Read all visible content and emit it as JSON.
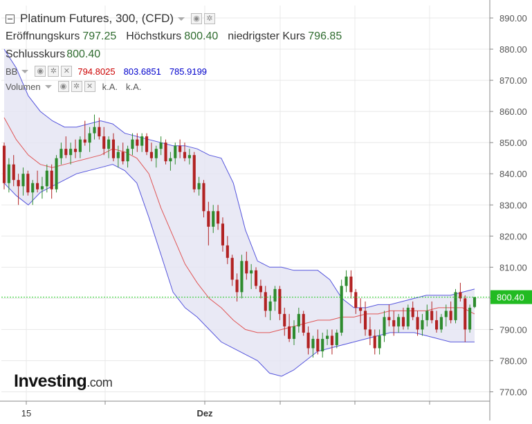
{
  "title": "Platinum Futures, 300, (CFD)",
  "ohlc": {
    "open_label": "Eröffnungskurs",
    "open": "797.25",
    "high_label": "Höchstkurs",
    "high": "800.40",
    "low_label": "niedrigster Kurs",
    "low": "796.85",
    "close_label": "Schlusskurs",
    "close": "800.40"
  },
  "indicators": {
    "bb": {
      "label": "BB",
      "middle": "794.8025",
      "upper": "803.6851",
      "lower": "785.9199"
    },
    "volume": {
      "label": "Volumen",
      "v1": "k.A.",
      "v2": "k.A."
    }
  },
  "logo": {
    "name": "Investing",
    "domain": ".com"
  },
  "colors": {
    "up": "#2e8b2e",
    "down": "#b22222",
    "band_fill": "#e3e3f3",
    "band_line": "#5555dd",
    "mid_line": "#e05555",
    "price_line": "#22cc22",
    "price_tag": "#22bb22",
    "grid": "#e8e8e8"
  },
  "chart_data": {
    "type": "candlestick",
    "y_axis": {
      "ticks": [
        "890.00",
        "880.00",
        "870.00",
        "860.00",
        "850.00",
        "840.00",
        "830.00",
        "820.00",
        "810.00",
        "800.00",
        "790.00",
        "780.00",
        "770.00"
      ],
      "ylim": [
        767,
        894
      ]
    },
    "x_axis": {
      "labels": [
        "15",
        "Dez"
      ]
    },
    "current_price": "800.40",
    "candles": [
      [
        849.0,
        850.0,
        835.0,
        837.0
      ],
      [
        837.0,
        845.0,
        834.0,
        843.0
      ],
      [
        843.0,
        846.0,
        836.0,
        838.0
      ],
      [
        838.0,
        840.0,
        830.0,
        836.0
      ],
      [
        836.0,
        842.0,
        833.0,
        840.0
      ],
      [
        840.0,
        841.0,
        833.0,
        834.0
      ],
      [
        834.0,
        838.0,
        830.0,
        837.0
      ],
      [
        837.0,
        841.0,
        834.0,
        835.0
      ],
      [
        835.0,
        839.0,
        832.0,
        836.0
      ],
      [
        836.0,
        843.0,
        834.0,
        841.0
      ],
      [
        841.0,
        843.0,
        832.0,
        835.0
      ],
      [
        835.0,
        846.0,
        834.0,
        845.0
      ],
      [
        845.0,
        850.0,
        843.0,
        848.0
      ],
      [
        848.0,
        852.0,
        845.0,
        846.0
      ],
      [
        846.0,
        850.0,
        843.0,
        848.0
      ],
      [
        848.0,
        851.0,
        845.0,
        847.0
      ],
      [
        847.0,
        852.0,
        845.0,
        851.0
      ],
      [
        851.0,
        857.0,
        849.0,
        850.0
      ],
      [
        850.0,
        855.0,
        847.0,
        853.0
      ],
      [
        853.0,
        859.0,
        851.0,
        855.0
      ],
      [
        855.0,
        858.0,
        851.0,
        852.0
      ],
      [
        852.0,
        855.0,
        846.0,
        848.0
      ],
      [
        848.0,
        852.0,
        845.0,
        851.0
      ],
      [
        851.0,
        853.0,
        844.0,
        845.0
      ],
      [
        845.0,
        849.0,
        842.0,
        847.0
      ],
      [
        847.0,
        850.0,
        843.0,
        844.0
      ],
      [
        844.0,
        849.0,
        842.0,
        848.0
      ],
      [
        848.0,
        853.0,
        846.0,
        851.0
      ],
      [
        851.0,
        853.0,
        847.0,
        849.0
      ],
      [
        849.0,
        853.0,
        847.0,
        852.0
      ],
      [
        852.0,
        853.0,
        846.0,
        847.0
      ],
      [
        847.0,
        850.0,
        844.0,
        845.0
      ],
      [
        845.0,
        849.0,
        842.0,
        848.0
      ],
      [
        848.0,
        852.0,
        846.0,
        850.0
      ],
      [
        850.0,
        851.0,
        843.0,
        844.0
      ],
      [
        844.0,
        847.0,
        841.0,
        845.0
      ],
      [
        845.0,
        850.0,
        843.0,
        849.0
      ],
      [
        849.0,
        851.0,
        845.0,
        847.0
      ],
      [
        847.0,
        850.0,
        844.0,
        845.0
      ],
      [
        845.0,
        848.0,
        843.0,
        846.0
      ],
      [
        846.0,
        847.0,
        834.0,
        835.0
      ],
      [
        835.0,
        839.0,
        833.0,
        837.0
      ],
      [
        837.0,
        838.0,
        826.0,
        828.0
      ],
      [
        828.0,
        831.0,
        817.0,
        823.0
      ],
      [
        823.0,
        830.0,
        821.0,
        828.0
      ],
      [
        828.0,
        830.0,
        822.0,
        824.0
      ],
      [
        824.0,
        826.0,
        815.0,
        817.0
      ],
      [
        817.0,
        820.0,
        811.0,
        813.0
      ],
      [
        813.0,
        814.0,
        804.0,
        806.0
      ],
      [
        806.0,
        808.0,
        799.0,
        802.0
      ],
      [
        802.0,
        814.0,
        800.0,
        812.0
      ],
      [
        812.0,
        815.0,
        806.0,
        808.0
      ],
      [
        808.0,
        811.0,
        803.0,
        809.0
      ],
      [
        809.0,
        810.0,
        803.0,
        804.0
      ],
      [
        804.0,
        806.0,
        800.0,
        802.0
      ],
      [
        802.0,
        804.0,
        794.0,
        796.0
      ],
      [
        796.0,
        801.0,
        793.0,
        799.0
      ],
      [
        799.0,
        804.0,
        796.0,
        803.0
      ],
      [
        803.0,
        804.0,
        793.0,
        795.0
      ],
      [
        795.0,
        797.0,
        788.0,
        791.0
      ],
      [
        791.0,
        795.0,
        786.0,
        787.0
      ],
      [
        787.0,
        793.0,
        785.0,
        791.0
      ],
      [
        791.0,
        797.0,
        789.0,
        795.0
      ],
      [
        795.0,
        796.0,
        788.0,
        789.0
      ],
      [
        789.0,
        791.0,
        782.0,
        784.0
      ],
      [
        784.0,
        788.0,
        781.0,
        787.0
      ],
      [
        787.0,
        790.0,
        782.0,
        783.0
      ],
      [
        783.0,
        789.0,
        781.0,
        787.0
      ],
      [
        787.0,
        790.0,
        785.0,
        788.0
      ],
      [
        788.0,
        790.0,
        782.0,
        785.0
      ],
      [
        785.0,
        790.0,
        784.0,
        789.0
      ],
      [
        789.0,
        806.0,
        788.0,
        804.0
      ],
      [
        804.0,
        809.0,
        802.0,
        807.0
      ],
      [
        807.0,
        809.0,
        800.0,
        802.0
      ],
      [
        802.0,
        803.0,
        795.0,
        797.0
      ],
      [
        797.0,
        800.0,
        792.0,
        796.0
      ],
      [
        796.0,
        799.0,
        788.0,
        790.0
      ],
      [
        790.0,
        794.0,
        785.0,
        788.0
      ],
      [
        788.0,
        790.0,
        782.0,
        784.0
      ],
      [
        784.0,
        790.0,
        782.0,
        788.0
      ],
      [
        788.0,
        796.0,
        786.0,
        794.0
      ],
      [
        794.0,
        798.0,
        791.0,
        793.0
      ],
      [
        793.0,
        796.0,
        788.0,
        791.0
      ],
      [
        791.0,
        795.0,
        789.0,
        794.0
      ],
      [
        794.0,
        797.0,
        790.0,
        791.0
      ],
      [
        791.0,
        798.0,
        790.0,
        797.0
      ],
      [
        797.0,
        799.0,
        793.0,
        794.0
      ],
      [
        794.0,
        796.0,
        788.0,
        790.0
      ],
      [
        790.0,
        795.0,
        788.0,
        793.0
      ],
      [
        793.0,
        798.0,
        791.0,
        796.0
      ],
      [
        796.0,
        799.0,
        792.0,
        793.0
      ],
      [
        793.0,
        796.0,
        789.0,
        790.0
      ],
      [
        790.0,
        795.0,
        789.0,
        794.0
      ],
      [
        794.0,
        798.0,
        791.0,
        796.0
      ],
      [
        796.0,
        799.0,
        792.0,
        793.0
      ],
      [
        793.0,
        803.0,
        792.0,
        802.0
      ],
      [
        802.0,
        805.0,
        799.0,
        800.0
      ],
      [
        800.0,
        801.0,
        786.0,
        790.0
      ],
      [
        790.0,
        798.0,
        789.0,
        797.0
      ],
      [
        797.25,
        800.4,
        796.85,
        800.4
      ]
    ],
    "bollinger": {
      "upper": [
        880,
        874,
        865,
        860,
        857,
        855,
        855,
        856,
        857,
        856,
        853,
        852,
        851,
        850,
        849,
        849,
        848,
        846,
        845,
        837,
        822,
        812,
        810,
        810,
        809,
        809,
        809,
        806,
        800,
        797,
        797,
        798,
        798,
        799,
        800,
        801,
        801,
        801,
        802,
        803
      ],
      "middle": [
        858,
        851,
        846,
        843,
        842,
        843,
        844,
        845,
        846,
        848,
        847,
        845,
        840,
        829,
        820,
        811,
        805,
        800,
        797,
        793,
        790,
        789,
        789,
        790,
        791,
        792,
        793,
        793,
        794,
        794,
        795,
        795,
        796,
        796,
        796,
        796,
        797,
        797,
        797,
        795
      ],
      "lower": [
        837,
        833,
        830,
        834,
        836,
        838,
        840,
        841,
        842,
        843,
        841,
        837,
        826,
        814,
        802,
        797,
        794,
        790,
        786,
        784,
        782,
        780,
        776,
        775,
        777,
        780,
        783,
        784,
        785,
        786,
        787,
        788,
        789,
        789,
        789,
        788,
        787,
        786,
        786,
        786
      ]
    }
  }
}
